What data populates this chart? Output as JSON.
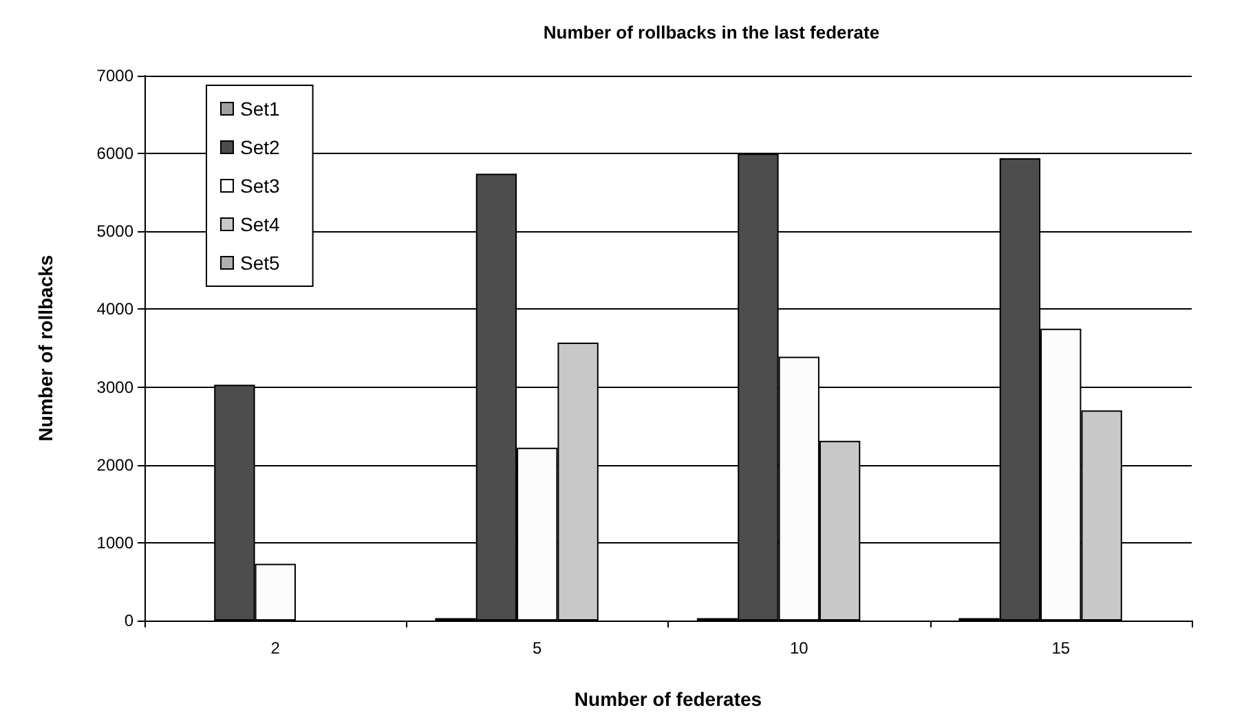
{
  "chart_data": {
    "type": "bar",
    "title": "Number of rollbacks in the last federate",
    "xlabel": "Number of federates",
    "ylabel": "Number of rollbacks",
    "categories": [
      "2",
      "5",
      "10",
      "15"
    ],
    "series": [
      {
        "name": "Set1",
        "color": "#a0a0a0",
        "values": [
          null,
          30,
          30,
          30
        ]
      },
      {
        "name": "Set2",
        "color": "#4d4d4d",
        "values": [
          3030,
          5740,
          6000,
          5940
        ]
      },
      {
        "name": "Set3",
        "color": "#fcfcfc",
        "values": [
          730,
          2220,
          3390,
          3750
        ]
      },
      {
        "name": "Set4",
        "color": "#c8c8c8",
        "values": [
          null,
          3570,
          2310,
          2700
        ]
      },
      {
        "name": "Set5",
        "color": "#b0b0b0",
        "values": [
          null,
          null,
          null,
          null
        ]
      }
    ],
    "ylim": [
      0,
      7000
    ],
    "yticks": [
      0,
      1000,
      2000,
      3000,
      4000,
      5000,
      6000,
      7000
    ],
    "grid": "y",
    "legend": "top left"
  }
}
